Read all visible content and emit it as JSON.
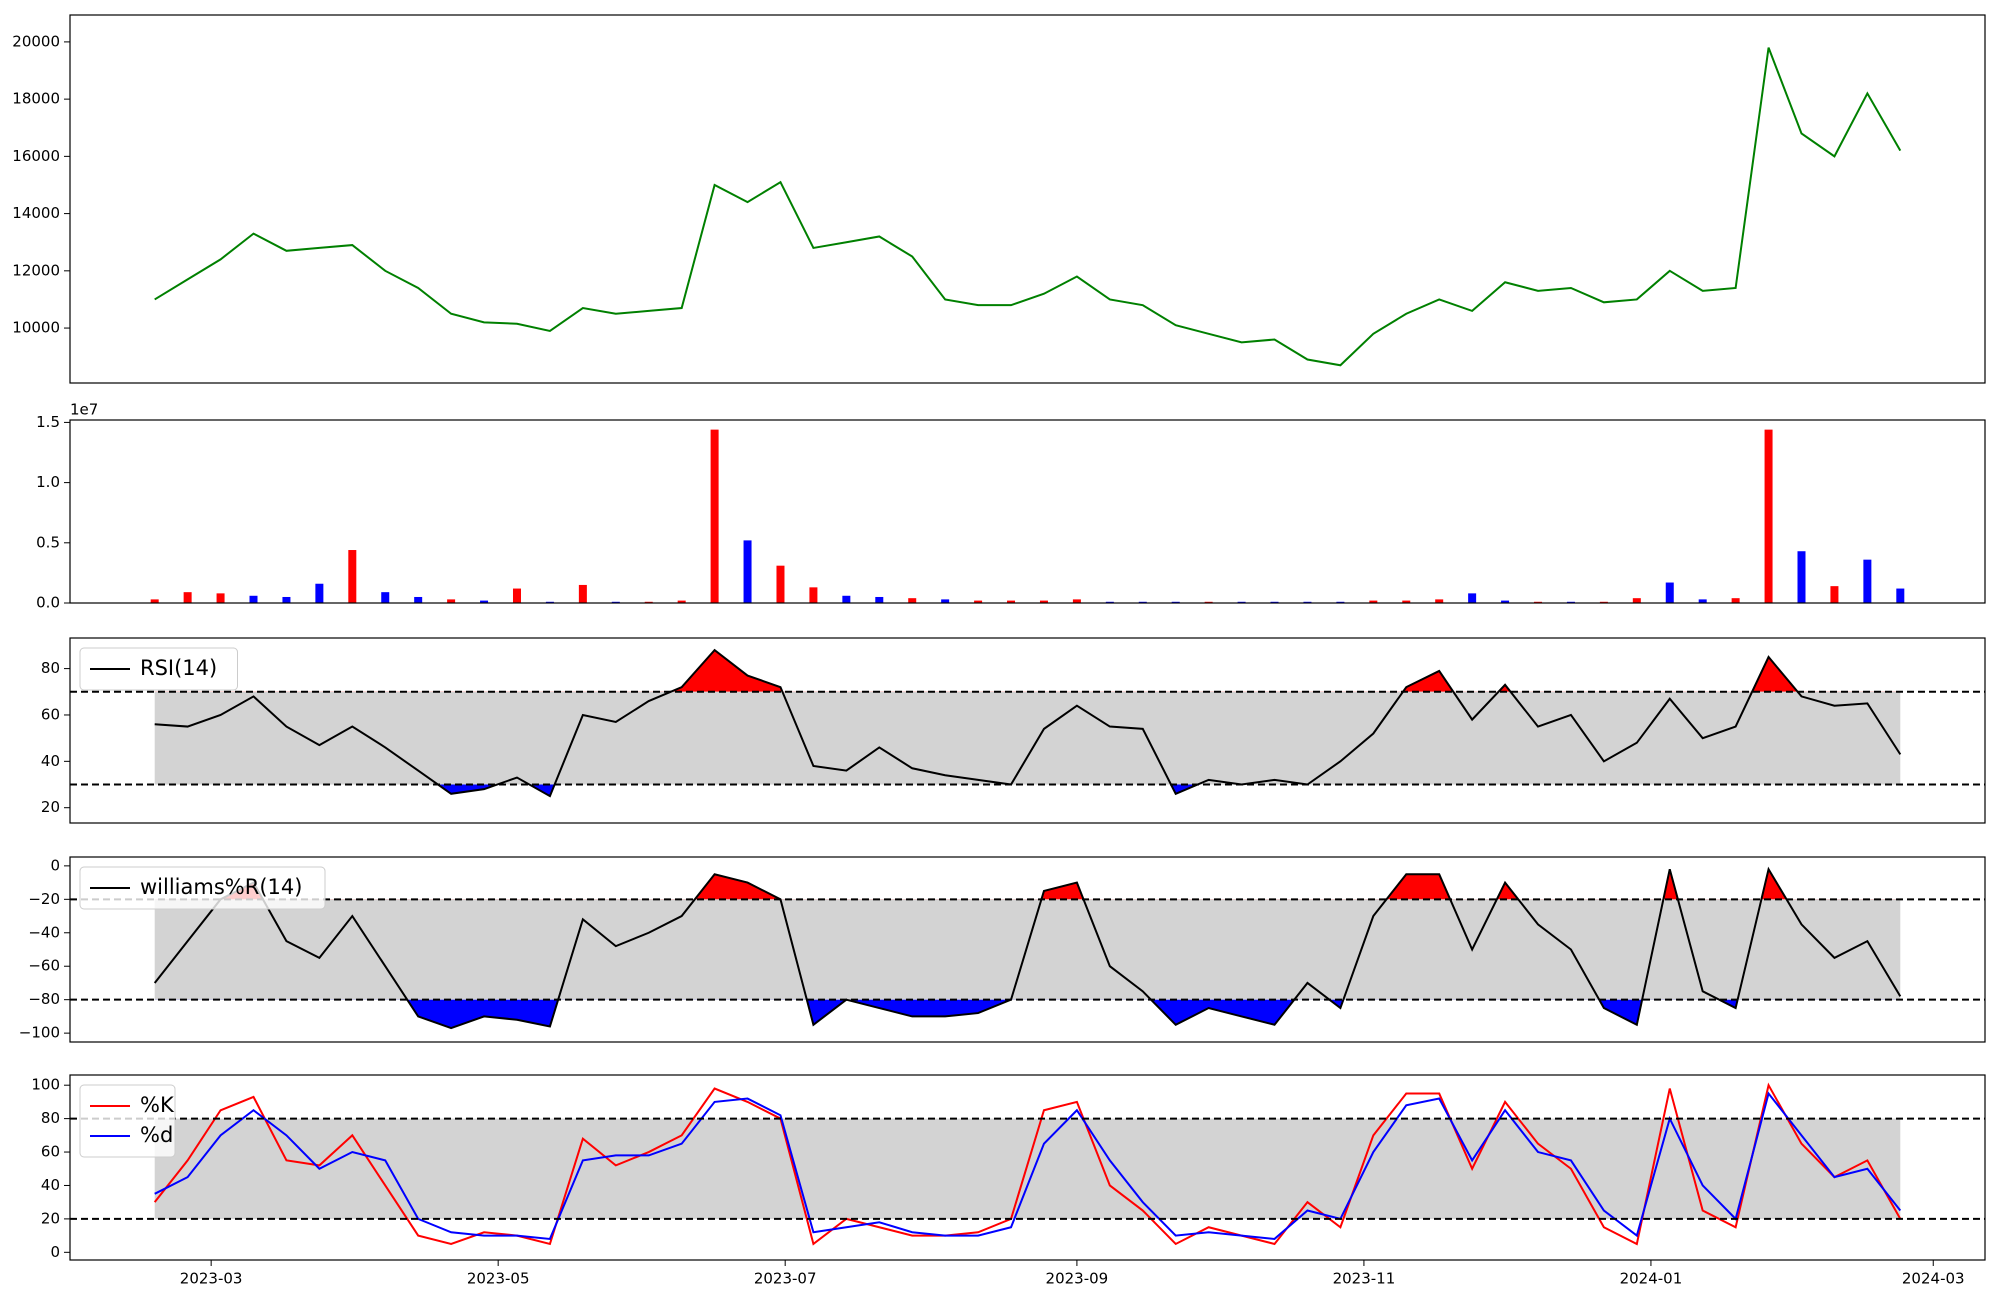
{
  "chart_data": {
    "type": "panels",
    "x": [
      "2023-02-17",
      "2023-02-24",
      "2023-03-03",
      "2023-03-10",
      "2023-03-17",
      "2023-03-24",
      "2023-03-31",
      "2023-04-07",
      "2023-04-14",
      "2023-04-21",
      "2023-04-28",
      "2023-05-05",
      "2023-05-12",
      "2023-05-19",
      "2023-05-26",
      "2023-06-02",
      "2023-06-09",
      "2023-06-16",
      "2023-06-23",
      "2023-06-30",
      "2023-07-07",
      "2023-07-14",
      "2023-07-21",
      "2023-07-28",
      "2023-08-04",
      "2023-08-11",
      "2023-08-18",
      "2023-08-25",
      "2023-09-01",
      "2023-09-08",
      "2023-09-15",
      "2023-09-22",
      "2023-09-29",
      "2023-10-06",
      "2023-10-13",
      "2023-10-20",
      "2023-10-27",
      "2023-11-03",
      "2023-11-10",
      "2023-11-17",
      "2023-11-24",
      "2023-12-01",
      "2023-12-08",
      "2023-12-15",
      "2023-12-22",
      "2023-12-29",
      "2024-01-05",
      "2024-01-12",
      "2024-01-19",
      "2024-01-26",
      "2024-02-02",
      "2024-02-09",
      "2024-02-16",
      "2024-02-23"
    ],
    "xlim": [
      "2023-01-30",
      "2024-03-12"
    ],
    "xticks": [
      {
        "value": "2023-03-01",
        "label": "2023-03"
      },
      {
        "value": "2023-05-01",
        "label": "2023-05"
      },
      {
        "value": "2023-07-01",
        "label": "2023-07"
      },
      {
        "value": "2023-09-01",
        "label": "2023-09"
      },
      {
        "value": "2023-11-01",
        "label": "2023-11"
      },
      {
        "value": "2024-01-01",
        "label": "2024-01"
      },
      {
        "value": "2024-03-01",
        "label": "2024-03"
      }
    ],
    "panels": [
      {
        "type": "line",
        "ylim": [
          8080,
          20940
        ],
        "yticks": [
          10000,
          12000,
          14000,
          16000,
          18000,
          20000
        ],
        "series": [
          {
            "color": "#008000",
            "values": [
              11000,
              11700,
              12400,
              13300,
              12700,
              12800,
              12900,
              12000,
              11400,
              10500,
              10200,
              10150,
              9900,
              10700,
              10500,
              10600,
              10700,
              15000,
              14400,
              15100,
              12800,
              13000,
              13200,
              12500,
              11000,
              10800,
              10800,
              11200,
              11800,
              11000,
              10800,
              10100,
              9800,
              9500,
              9600,
              8900,
              8700,
              9800,
              10500,
              11000,
              10600,
              11600,
              11300,
              11400,
              10900,
              11000,
              12000,
              11300,
              11400,
              19800,
              16800,
              16000,
              18200,
              16200
            ]
          }
        ]
      },
      {
        "type": "bar",
        "ylim": [
          0,
          15200000
        ],
        "y_offset_label": "1e7",
        "yticks": [
          {
            "value": 0,
            "label": "0.0"
          },
          {
            "value": 5000000,
            "label": "0.5"
          },
          {
            "value": 10000000,
            "label": "1.0"
          },
          {
            "value": 15000000,
            "label": "1.5"
          }
        ],
        "values": [
          300000,
          900000,
          800000,
          600000,
          500000,
          1600000,
          4400000,
          900000,
          500000,
          300000,
          200000,
          1200000,
          100000,
          1500000,
          100000,
          100000,
          200000,
          14400000,
          5200000,
          3100000,
          1300000,
          600000,
          500000,
          400000,
          300000,
          200000,
          200000,
          200000,
          300000,
          100000,
          100000,
          100000,
          100000,
          100000,
          100000,
          100000,
          100000,
          200000,
          200000,
          300000,
          800000,
          200000,
          100000,
          100000,
          100000,
          400000,
          1700000,
          300000,
          400000,
          14400000,
          4300000,
          1400000,
          3600000,
          1200000
        ],
        "colors": [
          "red",
          "red",
          "red",
          "blue",
          "blue",
          "blue",
          "red",
          "blue",
          "blue",
          "red",
          "blue",
          "red",
          "blue",
          "red",
          "blue",
          "red",
          "red",
          "red",
          "blue",
          "red",
          "red",
          "blue",
          "blue",
          "red",
          "blue",
          "red",
          "red",
          "red",
          "red",
          "blue",
          "blue",
          "blue",
          "red",
          "blue",
          "blue",
          "blue",
          "blue",
          "red",
          "red",
          "red",
          "blue",
          "blue",
          "red",
          "blue",
          "red",
          "red",
          "blue",
          "blue",
          "red",
          "red",
          "blue",
          "red",
          "blue",
          "blue"
        ]
      },
      {
        "type": "line",
        "ylim": [
          13.4,
          93.2
        ],
        "yticks": [
          20,
          40,
          60,
          80
        ],
        "band": {
          "upper": 70,
          "lower": 30,
          "color": "#d3d3d3",
          "upper_fill": "red",
          "lower_fill": "blue"
        },
        "legend": "upper left",
        "series": [
          {
            "name": "RSI(14)",
            "color": "#000000",
            "values": [
              56,
              55,
              60,
              68,
              55,
              47,
              55,
              46,
              36,
              26,
              28,
              33,
              25,
              60,
              57,
              66,
              72,
              88,
              77,
              72,
              38,
              36,
              46,
              37,
              34,
              32,
              30,
              54,
              64,
              55,
              54,
              26,
              32,
              30,
              32,
              30,
              40,
              52,
              72,
              79,
              58,
              73,
              55,
              60,
              40,
              48,
              67,
              50,
              55,
              85,
              68,
              64,
              65,
              43
            ]
          }
        ]
      },
      {
        "type": "line",
        "ylim": [
          -105.3,
          5.3
        ],
        "yticks": [
          {
            "value": 0,
            "label": "0"
          },
          {
            "value": -20,
            "label": "−20"
          },
          {
            "value": -40,
            "label": "−40"
          },
          {
            "value": -60,
            "label": "−60"
          },
          {
            "value": -80,
            "label": "−80"
          },
          {
            "value": -100,
            "label": "−100"
          }
        ],
        "band": {
          "upper": -20,
          "lower": -80,
          "color": "#d3d3d3",
          "upper_fill": "red",
          "lower_fill": "blue"
        },
        "legend": "upper left",
        "series": [
          {
            "name": "williams%R(14)",
            "color": "#000000",
            "values": [
              -70,
              -45,
              -20,
              -10,
              -45,
              -55,
              -30,
              -60,
              -90,
              -97,
              -90,
              -92,
              -96,
              -32,
              -48,
              -40,
              -30,
              -5,
              -10,
              -20,
              -95,
              -80,
              -85,
              -90,
              -90,
              -88,
              -80,
              -15,
              -10,
              -60,
              -75,
              -95,
              -85,
              -90,
              -95,
              -70,
              -85,
              -30,
              -5,
              -5,
              -50,
              -10,
              -35,
              -50,
              -85,
              -95,
              -2,
              -75,
              -85,
              -2,
              -35,
              -55,
              -45,
              -78
            ]
          }
        ]
      },
      {
        "type": "line",
        "ylim": [
          -4.6,
          106.1
        ],
        "yticks": [
          0,
          20,
          40,
          60,
          80,
          100
        ],
        "band": {
          "upper": 80,
          "lower": 20,
          "color": "#d3d3d3"
        },
        "legend": "upper left",
        "series": [
          {
            "name": "%K",
            "color": "#ff0000",
            "values": [
              30,
              55,
              85,
              93,
              55,
              52,
              70,
              40,
              10,
              5,
              12,
              10,
              5,
              68,
              52,
              60,
              70,
              98,
              90,
              80,
              5,
              20,
              15,
              10,
              10,
              12,
              20,
              85,
              90,
              40,
              25,
              5,
              15,
              10,
              5,
              30,
              15,
              70,
              95,
              95,
              50,
              90,
              65,
              50,
              15,
              5,
              98,
              25,
              15,
              100,
              65,
              45,
              55,
              20
            ]
          },
          {
            "name": "%d",
            "color": "#0000ff",
            "values": [
              35,
              45,
              70,
              85,
              70,
              50,
              60,
              55,
              20,
              12,
              10,
              10,
              8,
              55,
              58,
              58,
              65,
              90,
              92,
              82,
              12,
              15,
              18,
              12,
              10,
              10,
              15,
              65,
              85,
              55,
              30,
              10,
              12,
              10,
              8,
              25,
              20,
              60,
              88,
              92,
              55,
              85,
              60,
              55,
              25,
              10,
              80,
              40,
              20,
              95,
              70,
              45,
              50,
              25
            ]
          }
        ]
      }
    ]
  }
}
